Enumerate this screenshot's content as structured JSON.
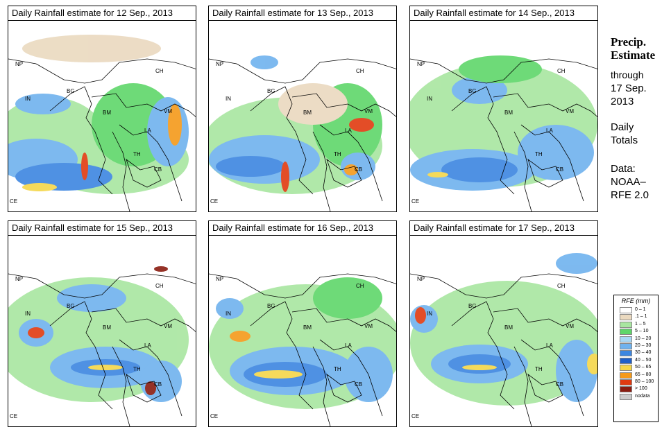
{
  "panels": [
    {
      "title": "Daily Rainfall estimate for  12 Sep., 2013"
    },
    {
      "title": "Daily Rainfall estimate for  13 Sep., 2013"
    },
    {
      "title": "Daily Rainfall estimate for  14 Sep., 2013"
    },
    {
      "title": "Daily Rainfall estimate for  15 Sep., 2013"
    },
    {
      "title": "Daily Rainfall estimate for  16 Sep., 2013"
    },
    {
      "title": "Daily Rainfall estimate for  17 Sep., 2013"
    }
  ],
  "country_labels": [
    "NP",
    "CH",
    "IN",
    "BG",
    "BM",
    "VM",
    "LA",
    "TH",
    "CB",
    "CE"
  ],
  "side": {
    "heading_line1": "Precip.",
    "heading_line2": "Estimate",
    "through": "through",
    "date_line1": "17 Sep.",
    "date_line2": "2013",
    "daily1": "Daily",
    "daily2": "Totals",
    "data1": "Data:",
    "data2": "NOAA–",
    "data3": "RFE 2.0"
  },
  "legend": {
    "title": "RFE (mm)",
    "items": [
      {
        "label": "0 – 1",
        "color": "#ffffff"
      },
      {
        "label": ".1 – 1",
        "color": "#ead9bf"
      },
      {
        "label": "1 – 5",
        "color": "#a8e6a0"
      },
      {
        "label": "5 – 10",
        "color": "#5fd66a"
      },
      {
        "label": "10 – 20",
        "color": "#a9d8f5"
      },
      {
        "label": "20 – 30",
        "color": "#6fb2ee"
      },
      {
        "label": "30 – 40",
        "color": "#3d86e0"
      },
      {
        "label": "40 – 50",
        "color": "#1f5fc8"
      },
      {
        "label": "50 – 65",
        "color": "#f5d64a"
      },
      {
        "label": "65 – 80",
        "color": "#f59a1a"
      },
      {
        "label": "80 – 100",
        "color": "#e03a10"
      },
      {
        "label": "> 100",
        "color": "#8a1c10"
      },
      {
        "label": "nodata",
        "color": "#cccccc"
      }
    ]
  }
}
